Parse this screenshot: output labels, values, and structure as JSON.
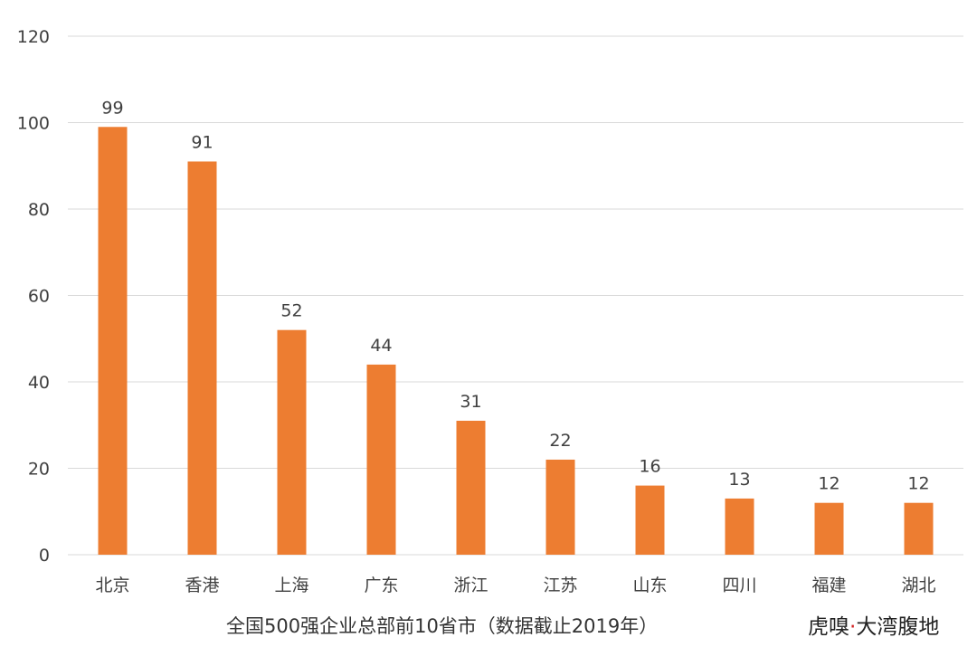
{
  "chart_data": {
    "type": "bar",
    "categories": [
      "北京",
      "香港",
      "上海",
      "广东",
      "浙江",
      "江苏",
      "山东",
      "四川",
      "福建",
      "湖北"
    ],
    "values": [
      99,
      91,
      52,
      44,
      31,
      22,
      16,
      13,
      12,
      12
    ],
    "ylim": [
      0,
      120
    ],
    "yticks": [
      0,
      20,
      40,
      60,
      80,
      100,
      120
    ],
    "title": "",
    "xlabel": "",
    "ylabel": "",
    "grid": true,
    "bar_color": "#ED7D31",
    "grid_color": "#D9D9D9",
    "data_labels": true
  },
  "caption": "全国500强企业总部前10省市（数据截止2019年）",
  "brand": {
    "name": "虎嗅",
    "separator": "·",
    "column": "大湾腹地"
  }
}
